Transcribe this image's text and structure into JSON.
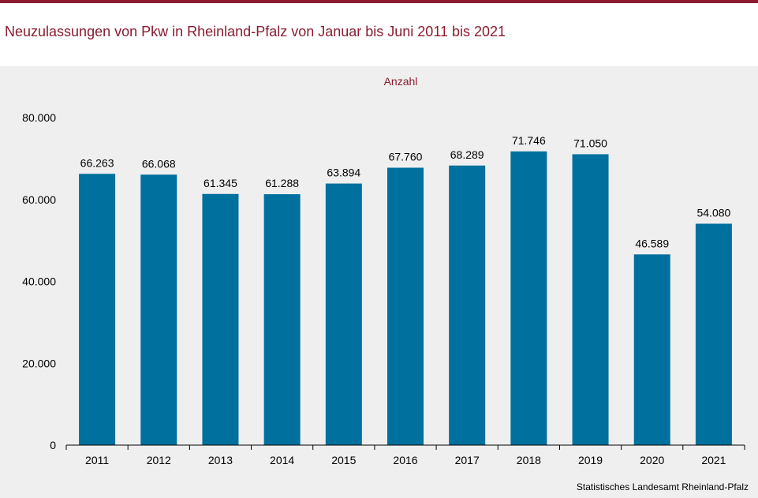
{
  "title": "Neuzulassungen von Pkw in Rheinland-Pfalz von Januar bis Juni 2011 bis 2021",
  "source": "Statistisches Landesamt  Rheinland-Pfalz",
  "colors": {
    "accent": "#8a1c2f",
    "bar": "#00709e",
    "panel": "#efefef"
  },
  "chart_data": {
    "type": "bar",
    "title": "Neuzulassungen von Pkw in Rheinland-Pfalz von Januar bis Juni 2011 bis 2021",
    "unit_label": "Anzahl",
    "categories": [
      "2011",
      "2012",
      "2013",
      "2014",
      "2015",
      "2016",
      "2017",
      "2018",
      "2019",
      "2020",
      "2021"
    ],
    "values": [
      66263,
      66068,
      61345,
      61288,
      63894,
      67760,
      68289,
      71746,
      71050,
      46589,
      54080
    ],
    "value_labels": [
      "66.263",
      "66.068",
      "61.345",
      "61.288",
      "63.894",
      "67.760",
      "68.289",
      "71.746",
      "71.050",
      "46.589",
      "54.080"
    ],
    "yticks": [
      0,
      20000,
      40000,
      60000,
      80000
    ],
    "ytick_labels": [
      "0",
      "20.000",
      "40.000",
      "60.000",
      "80.000"
    ],
    "ylim": [
      0,
      80000
    ],
    "grid": false,
    "legend": "none"
  }
}
